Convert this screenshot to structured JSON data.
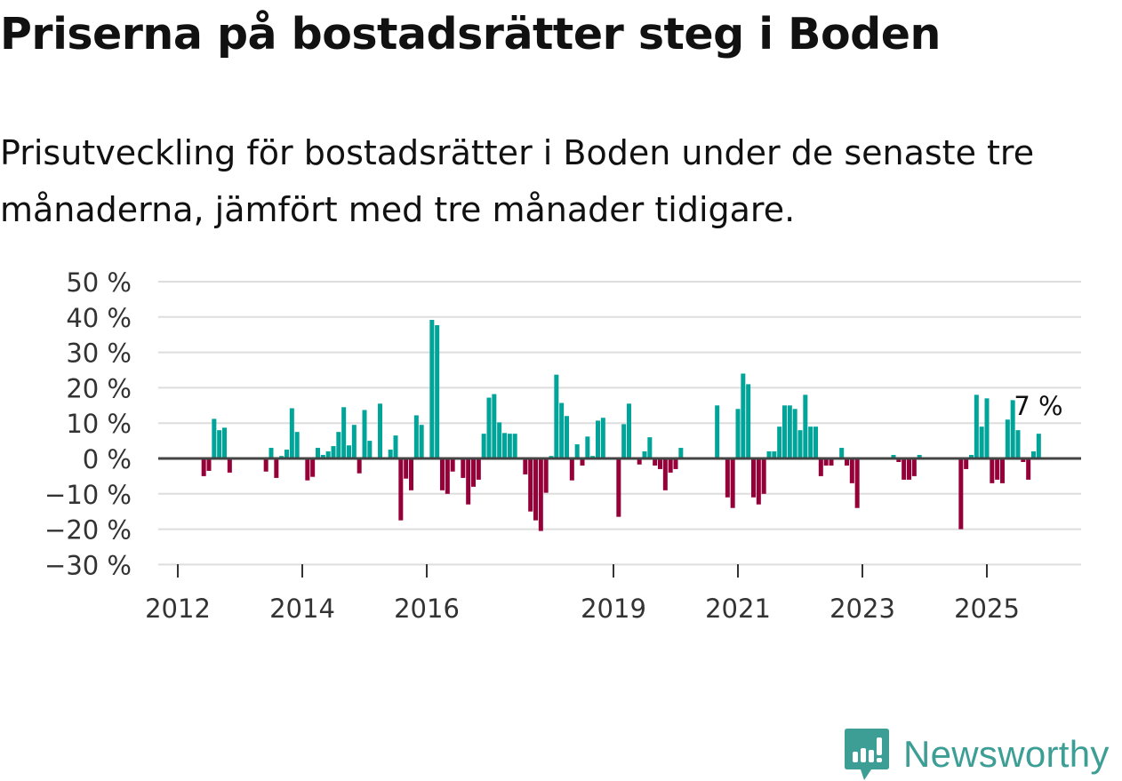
{
  "title": "Priserna på bostadsrätter steg i Boden",
  "subtitle": "Prisutveckling för bostadsrätter i Boden under de senaste tre månaderna, jämfört med tre månader tidigare.",
  "logo": {
    "text": "Newsworthy",
    "color": "#3d9e96"
  },
  "chart_data": {
    "type": "bar",
    "title": "Priserna på bostadsrätter steg i Boden",
    "xlabel": "",
    "ylabel": "",
    "ylim": [
      -30,
      50
    ],
    "yticks": [
      50,
      40,
      30,
      20,
      10,
      0,
      -10,
      -20,
      -30
    ],
    "ytick_labels": [
      "50 %",
      "40 %",
      "30 %",
      "20 %",
      "10 %",
      "0 %",
      "−10 %",
      "−20 %",
      "−30 %"
    ],
    "xticks": [
      "2012",
      "2014",
      "2016",
      "2019",
      "2021",
      "2023",
      "2025"
    ],
    "grid": true,
    "colors": {
      "positive": "#00a499",
      "negative": "#960039",
      "zero_line": "#444444",
      "grid": "#dddddd"
    },
    "annotation": {
      "date": "2025-11",
      "text": "7 %"
    },
    "points": [
      [
        "2012-06",
        -5
      ],
      [
        "2012-07",
        -3.5
      ],
      [
        "2012-08",
        11.2
      ],
      [
        "2012-09",
        8
      ],
      [
        "2012-10",
        8.7
      ],
      [
        "2012-11",
        -4
      ],
      [
        "2013-06",
        -3.7
      ],
      [
        "2013-07",
        3
      ],
      [
        "2013-08",
        -5.5
      ],
      [
        "2013-09",
        0.7
      ],
      [
        "2013-10",
        2.5
      ],
      [
        "2013-11",
        14.2
      ],
      [
        "2013-12",
        7.5
      ],
      [
        "2014-02",
        -6.2
      ],
      [
        "2014-03",
        -5.2
      ],
      [
        "2014-04",
        3
      ],
      [
        "2014-05",
        1
      ],
      [
        "2014-06",
        2
      ],
      [
        "2014-07",
        3.5
      ],
      [
        "2014-08",
        7.5
      ],
      [
        "2014-09",
        14.5
      ],
      [
        "2014-10",
        3.7
      ],
      [
        "2014-11",
        9.5
      ],
      [
        "2014-12",
        -4.2
      ],
      [
        "2015-01",
        13.7
      ],
      [
        "2015-02",
        5
      ],
      [
        "2015-04",
        15.5
      ],
      [
        "2015-06",
        2.5
      ],
      [
        "2015-07",
        6.5
      ],
      [
        "2015-08",
        -17.5
      ],
      [
        "2015-09",
        -5.7
      ],
      [
        "2015-10",
        -9
      ],
      [
        "2015-11",
        12.2
      ],
      [
        "2015-12",
        9.5
      ],
      [
        "2016-02",
        39.2
      ],
      [
        "2016-03",
        37.7
      ],
      [
        "2016-04",
        -9
      ],
      [
        "2016-05",
        -10
      ],
      [
        "2016-06",
        -3.7
      ],
      [
        "2016-08",
        -5.5
      ],
      [
        "2016-09",
        -13
      ],
      [
        "2016-10",
        -8
      ],
      [
        "2016-11",
        -6
      ],
      [
        "2016-12",
        7
      ],
      [
        "2017-01",
        17.2
      ],
      [
        "2017-02",
        18.2
      ],
      [
        "2017-03",
        10.2
      ],
      [
        "2017-04",
        7.2
      ],
      [
        "2017-05",
        7
      ],
      [
        "2017-06",
        7
      ],
      [
        "2017-08",
        -4.5
      ],
      [
        "2017-09",
        -15
      ],
      [
        "2017-10",
        -17.5
      ],
      [
        "2017-11",
        -20.5
      ],
      [
        "2017-12",
        -9.7
      ],
      [
        "2018-01",
        0.7
      ],
      [
        "2018-02",
        23.7
      ],
      [
        "2018-03",
        15.7
      ],
      [
        "2018-04",
        12
      ],
      [
        "2018-05",
        -6.2
      ],
      [
        "2018-06",
        4
      ],
      [
        "2018-07",
        -2
      ],
      [
        "2018-08",
        6.2
      ],
      [
        "2018-09",
        0.7
      ],
      [
        "2018-10",
        10.7
      ],
      [
        "2018-11",
        11.5
      ],
      [
        "2019-02",
        -16.5
      ],
      [
        "2019-03",
        9.7
      ],
      [
        "2019-04",
        15.5
      ],
      [
        "2019-06",
        -1.7
      ],
      [
        "2019-07",
        2
      ],
      [
        "2019-08",
        6
      ],
      [
        "2019-09",
        -2
      ],
      [
        "2019-10",
        -3
      ],
      [
        "2019-11",
        -9
      ],
      [
        "2019-12",
        -4
      ],
      [
        "2020-01",
        -3
      ],
      [
        "2020-02",
        3
      ],
      [
        "2020-09",
        15
      ],
      [
        "2020-11",
        -11
      ],
      [
        "2020-12",
        -14
      ],
      [
        "2021-01",
        14
      ],
      [
        "2021-02",
        24
      ],
      [
        "2021-03",
        21
      ],
      [
        "2021-04",
        -11
      ],
      [
        "2021-05",
        -13
      ],
      [
        "2021-06",
        -10
      ],
      [
        "2021-07",
        2
      ],
      [
        "2021-08",
        2
      ],
      [
        "2021-09",
        9
      ],
      [
        "2021-10",
        15
      ],
      [
        "2021-11",
        15
      ],
      [
        "2021-12",
        14
      ],
      [
        "2022-01",
        8
      ],
      [
        "2022-02",
        18
      ],
      [
        "2022-03",
        9
      ],
      [
        "2022-04",
        9
      ],
      [
        "2022-05",
        -5
      ],
      [
        "2022-06",
        -2
      ],
      [
        "2022-07",
        -2
      ],
      [
        "2022-09",
        3
      ],
      [
        "2022-10",
        -2
      ],
      [
        "2022-11",
        -7
      ],
      [
        "2022-12",
        -14
      ],
      [
        "2023-07",
        1
      ],
      [
        "2023-08",
        -1
      ],
      [
        "2023-09",
        -6
      ],
      [
        "2023-10",
        -6
      ],
      [
        "2023-11",
        -5
      ],
      [
        "2023-12",
        1
      ],
      [
        "2024-08",
        -20
      ],
      [
        "2024-09",
        -3
      ],
      [
        "2024-10",
        1
      ],
      [
        "2024-11",
        18
      ],
      [
        "2024-12",
        9
      ],
      [
        "2025-01",
        17
      ],
      [
        "2025-02",
        -7
      ],
      [
        "2025-03",
        -6
      ],
      [
        "2025-04",
        -7
      ],
      [
        "2025-05",
        11
      ],
      [
        "2025-06",
        16.5
      ],
      [
        "2025-07",
        8
      ],
      [
        "2025-08",
        -1
      ],
      [
        "2025-09",
        -6
      ],
      [
        "2025-10",
        2
      ],
      [
        "2025-11",
        7
      ]
    ]
  }
}
